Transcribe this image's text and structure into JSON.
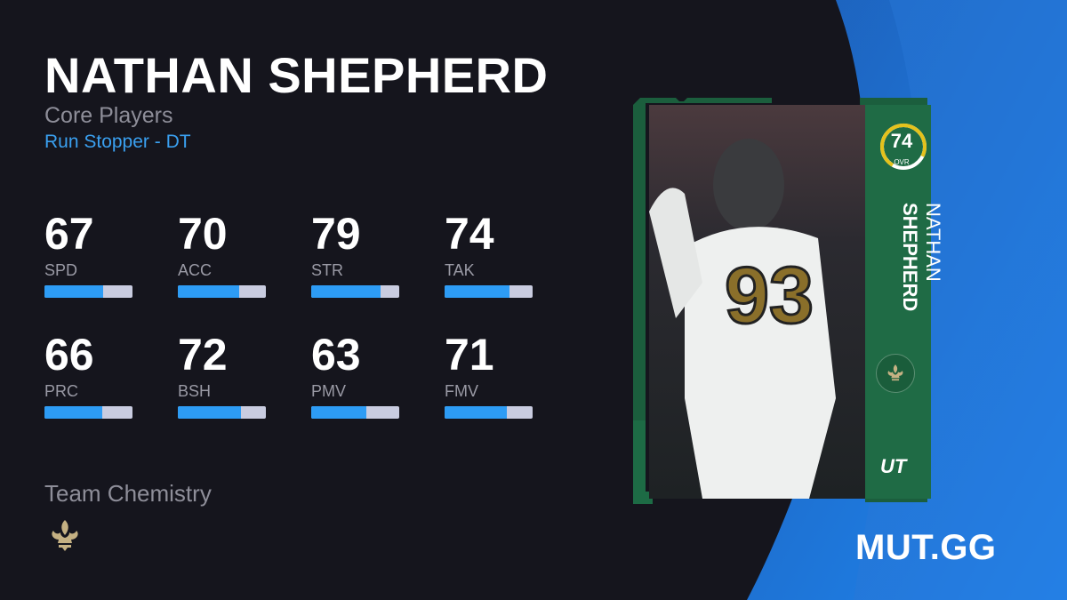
{
  "player": {
    "name": "NATHAN SHEPHERD",
    "first_name": "NATHAN",
    "last_name": "SHEPHERD",
    "program": "Core Players",
    "archetype": "Run Stopper - DT"
  },
  "stats": [
    {
      "value": 67,
      "label": "SPD"
    },
    {
      "value": 70,
      "label": "ACC"
    },
    {
      "value": 79,
      "label": "STR"
    },
    {
      "value": 74,
      "label": "TAK"
    },
    {
      "value": 66,
      "label": "PRC"
    },
    {
      "value": 72,
      "label": "BSH"
    },
    {
      "value": 63,
      "label": "PMV"
    },
    {
      "value": 71,
      "label": "FMV"
    }
  ],
  "team_chemistry": {
    "label": "Team Chemistry",
    "team_icon": "fleur-de-lis-icon"
  },
  "card": {
    "ovr": "74",
    "ovr_label": "OVR",
    "badge": "UT",
    "jersey": "93",
    "team_icon": "fleur-de-lis-icon"
  },
  "brand": "MUT.GG",
  "colors": {
    "background": "#15151d",
    "accent": "#2d9cf5",
    "card_green": "#1f6b45",
    "ovr_ring": "#e4c21c",
    "archetype": "#3aa0f0"
  }
}
